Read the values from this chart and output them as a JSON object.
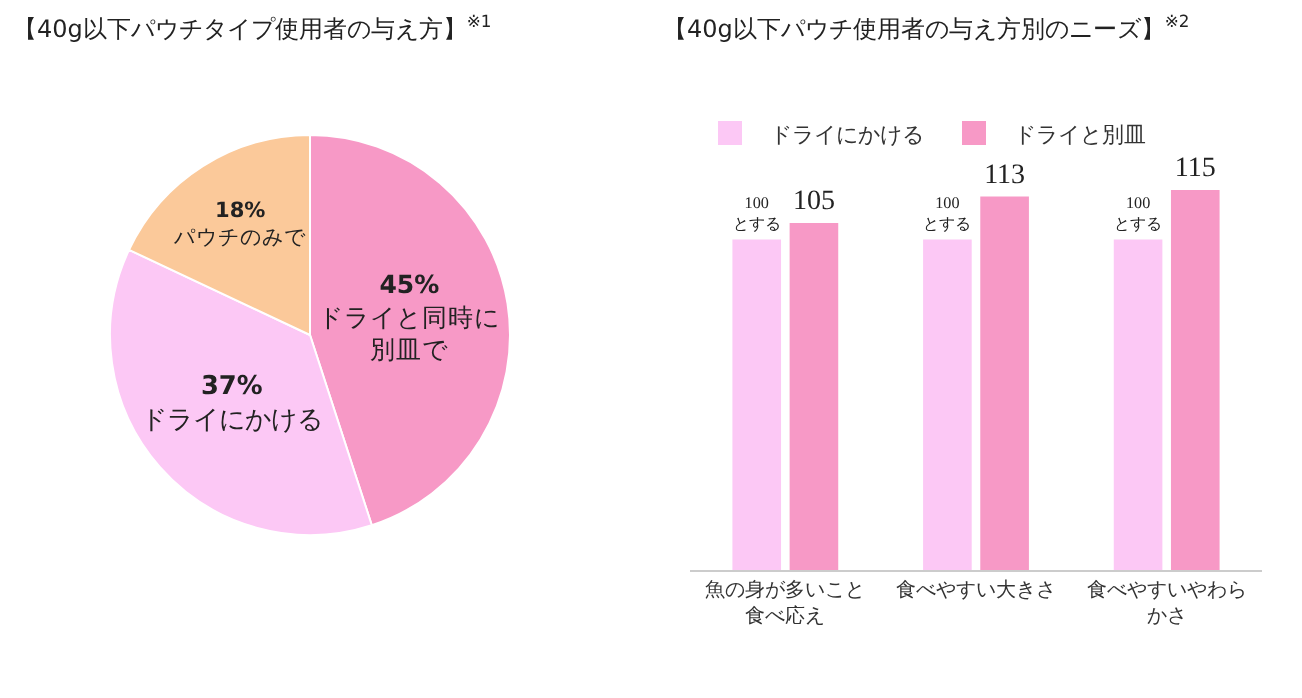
{
  "chart_data": [
    {
      "type": "pie",
      "title": "【40g以下パウチタイプ使用者の与え方】$^{※1}$",
      "categories": [
        "ドライと同時に別皿で",
        "ドライにかける",
        "パウチのみで"
      ],
      "values": [
        45,
        37,
        18
      ],
      "colors": [
        "#f799c6",
        "#fcc8f5",
        "#fbc99a"
      ],
      "value_labels": [
        "45%",
        "37%",
        "18%"
      ],
      "legend": false
    },
    {
      "type": "bar",
      "title": "【40g以下パウチ使用者の与え方別のニーズ】$^{※2}$",
      "categories": [
        "魚の身が多いこと食べ応え",
        "食べやすい大きさ",
        "食べやすいやわらかさ"
      ],
      "series": [
        {
          "name": "ドライにかける",
          "color": "#fcc8f5",
          "values": [
            100,
            100,
            100
          ],
          "value_labels": [
            "100\nとする",
            "100\nとする",
            "100\nとする"
          ]
        },
        {
          "name": "ドライと別皿",
          "color": "#f799c6",
          "values": [
            105,
            113,
            115
          ],
          "value_labels": [
            "105",
            "113",
            "115"
          ]
        }
      ],
      "tick_labels": "x",
      "legend": "top left",
      "grid": false
    }
  ]
}
